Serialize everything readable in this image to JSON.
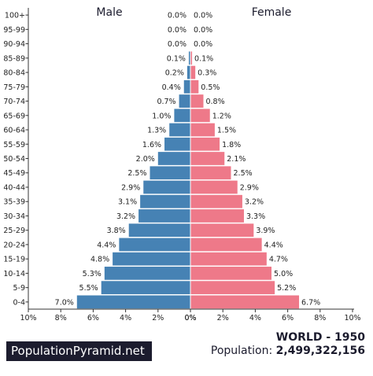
{
  "footer": {
    "brand": "PopulationPyramid.net",
    "region_year": "WORLD - 1950",
    "population_label": "Population:",
    "population_value": "2,499,322,156"
  },
  "chart_data": {
    "type": "bar",
    "orientation": "horizontal-pyramid",
    "left_header": "Male",
    "right_header": "Female",
    "categories": [
      "100+",
      "95-99",
      "90-94",
      "85-89",
      "80-84",
      "75-79",
      "70-74",
      "65-69",
      "60-64",
      "55-59",
      "50-54",
      "45-49",
      "40-44",
      "35-39",
      "30-34",
      "25-29",
      "20-24",
      "15-19",
      "10-14",
      "5-9",
      "0-4"
    ],
    "series": [
      {
        "name": "Male",
        "color": "#4682b4",
        "values": [
          0.0,
          0.0,
          0.0,
          0.1,
          0.2,
          0.4,
          0.7,
          1.0,
          1.3,
          1.6,
          2.0,
          2.5,
          2.9,
          3.1,
          3.2,
          3.8,
          4.4,
          4.8,
          5.3,
          5.5,
          7.0
        ],
        "labels": [
          "0.0%",
          "0.0%",
          "0.0%",
          "0.1%",
          "0.2%",
          "0.4%",
          "0.7%",
          "1.0%",
          "1.3%",
          "1.6%",
          "2.0%",
          "2.5%",
          "2.9%",
          "3.1%",
          "3.2%",
          "3.8%",
          "4.4%",
          "4.8%",
          "5.3%",
          "5.5%",
          "7.0%"
        ]
      },
      {
        "name": "Female",
        "color": "#ee7989",
        "values": [
          0.0,
          0.0,
          0.0,
          0.1,
          0.3,
          0.5,
          0.8,
          1.2,
          1.5,
          1.8,
          2.1,
          2.5,
          2.9,
          3.2,
          3.3,
          3.9,
          4.4,
          4.7,
          5.0,
          5.2,
          6.7
        ],
        "labels": [
          "0.0%",
          "0.0%",
          "0.0%",
          "0.1%",
          "0.3%",
          "0.5%",
          "0.8%",
          "1.2%",
          "1.5%",
          "1.8%",
          "2.1%",
          "2.5%",
          "2.9%",
          "3.2%",
          "3.3%",
          "3.9%",
          "4.4%",
          "4.7%",
          "5.0%",
          "5.2%",
          "6.7%"
        ]
      }
    ],
    "xlim": [
      0,
      10
    ],
    "left_ticks": [
      "10%",
      "8%",
      "6%",
      "4%",
      "2%",
      "0%"
    ],
    "right_ticks": [
      "0%",
      "2%",
      "4%",
      "6%",
      "8%",
      "10%"
    ],
    "grid": false
  }
}
